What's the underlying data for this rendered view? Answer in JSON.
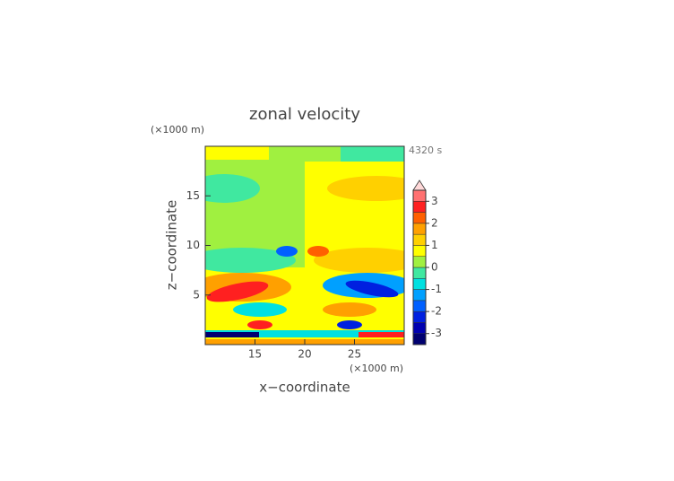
{
  "chart_data": {
    "type": "contour",
    "title": "zonal velocity",
    "x_label": "x−coordinate",
    "y_label": "z−coordinate",
    "x_unit": "(×1000 m)",
    "y_unit": "(×1000 m)",
    "time_label": "4320 s",
    "xlim": [
      10,
      30
    ],
    "xticks": [
      15,
      20,
      25
    ],
    "ylim": [
      0,
      20
    ],
    "yticks": [
      5,
      10,
      15
    ],
    "colorbar": {
      "levels": [
        -3.5,
        -3,
        -2.5,
        -2,
        -1.5,
        -1,
        -0.5,
        0,
        0.5,
        1,
        1.5,
        2,
        2.5,
        3,
        3.5
      ],
      "colors": [
        "#000070",
        "#0000b0",
        "#0020e0",
        "#0060ff",
        "#00a0ff",
        "#00e0e0",
        "#40e8a0",
        "#a0f040",
        "#ffff00",
        "#ffd000",
        "#ffa000",
        "#ff6000",
        "#ff2020",
        "#ff7070",
        "#ffb0b0"
      ],
      "extend_color": "#ffd8d8",
      "ticks": [
        -3,
        -2,
        -1,
        0,
        1,
        2,
        3
      ]
    }
  }
}
